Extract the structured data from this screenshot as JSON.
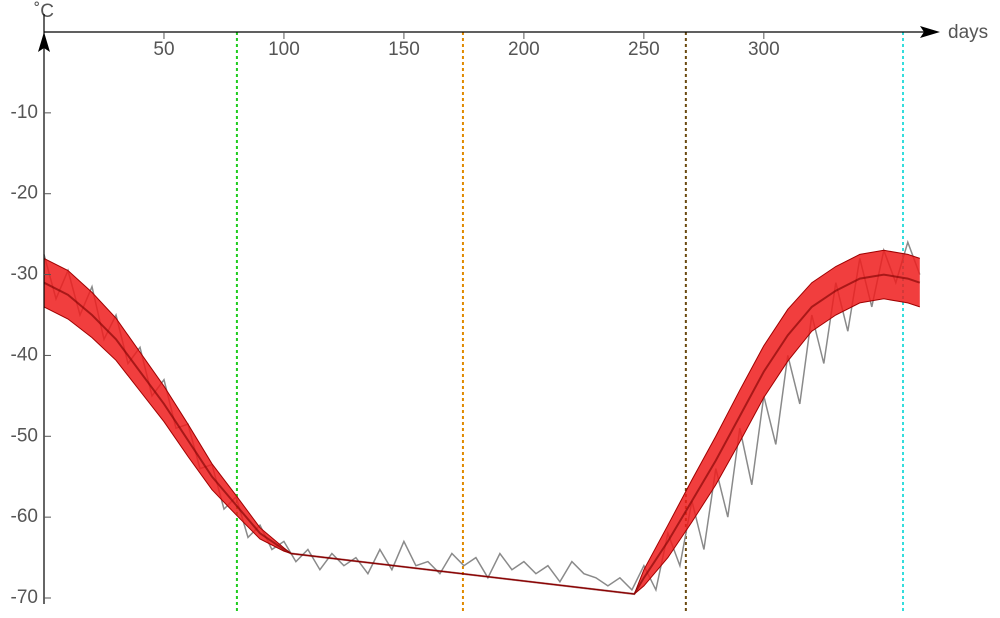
{
  "chart_data": {
    "type": "line",
    "x_label": "days",
    "y_label": "˚C",
    "xlim": [
      0,
      373
    ],
    "ylim": [
      -70,
      0
    ],
    "xticks": [
      50,
      100,
      150,
      200,
      250,
      300
    ],
    "yticks": [
      -10,
      -20,
      -30,
      -40,
      -50,
      -60,
      -70
    ],
    "vlines": [
      {
        "x": 80.4,
        "color": "#1fcc1f"
      },
      {
        "x": 174.6,
        "color": "#e08a00"
      },
      {
        "x": 267.5,
        "color": "#6b4a10"
      },
      {
        "x": 358,
        "color": "#33dddd"
      }
    ],
    "series": [
      {
        "kind": "line",
        "color": "#8a8a8a",
        "x": [
          0,
          5,
          10,
          15,
          20,
          25,
          30,
          35,
          40,
          45,
          50,
          55,
          60,
          65,
          70,
          75,
          80,
          85,
          90,
          95,
          100,
          105,
          110,
          115,
          120,
          125,
          130,
          135,
          140,
          145,
          150,
          155,
          160,
          165,
          170,
          175,
          180,
          185,
          190,
          195,
          200,
          205,
          210,
          215,
          220,
          225,
          230,
          235,
          240,
          245,
          250,
          255,
          260,
          265,
          270,
          275,
          280,
          285,
          290,
          295,
          300,
          305,
          310,
          315,
          320,
          325,
          330,
          335,
          340,
          345,
          350,
          355,
          360,
          365
        ],
        "values": [
          -27.5,
          -33,
          -29.5,
          -35,
          -31.5,
          -38,
          -35,
          -41,
          -39,
          -45,
          -43,
          -49,
          -48.5,
          -54,
          -53.5,
          -59,
          -57.5,
          -62.5,
          -61,
          -64,
          -63,
          -65.5,
          -64,
          -66.5,
          -64.5,
          -66,
          -65,
          -67,
          -64,
          -66.5,
          -63,
          -66,
          -65.5,
          -67,
          -64.5,
          -66,
          -65,
          -67.5,
          -64.5,
          -66.5,
          -65.5,
          -67,
          -66,
          -68,
          -65.5,
          -67,
          -67.5,
          -68.5,
          -67.5,
          -69,
          -66,
          -69,
          -62,
          -66,
          -58,
          -64,
          -54,
          -60,
          -49,
          -56,
          -45,
          -51,
          -40,
          -46,
          -35,
          -41,
          -31,
          -37,
          -28,
          -34,
          -27,
          -31,
          -26,
          -30
        ]
      },
      {
        "kind": "band",
        "color": "#ee1c1c",
        "x": [
          0,
          10,
          20,
          30,
          40,
          50,
          60,
          70,
          80,
          90,
          100,
          103,
          246,
          250,
          260,
          270,
          280,
          290,
          300,
          310,
          320,
          330,
          340,
          350,
          360,
          365
        ],
        "upper": [
          -28,
          -29.5,
          -32.2,
          -35.4,
          -39.6,
          -43.8,
          -48.5,
          -53.4,
          -57.3,
          -61.3,
          -63.8,
          -64.5,
          -69.5,
          -66.5,
          -61,
          -55.4,
          -50,
          -44.3,
          -38.8,
          -34.3,
          -31,
          -29,
          -27.5,
          -27,
          -27.5,
          -28
        ],
        "lower": [
          -34,
          -35.5,
          -37.8,
          -40.6,
          -44.4,
          -48.2,
          -52.5,
          -56.6,
          -59.7,
          -62.7,
          -64.2,
          -64.5,
          -69.5,
          -68.5,
          -65,
          -60.6,
          -56,
          -50.7,
          -45.2,
          -40.7,
          -37,
          -35,
          -33.5,
          -33,
          -33.5,
          -34
        ]
      }
    ]
  }
}
